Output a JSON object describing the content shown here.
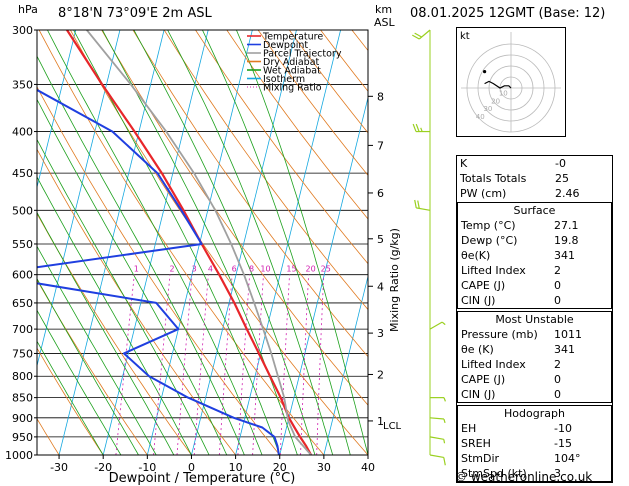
{
  "header": {
    "hpa_label": "hPa",
    "location": "8°18'N 73°09'E 2m ASL",
    "km_label": "km",
    "asl_label": "ASL",
    "datetime": "08.01.2025 12GMT (Base: 12)"
  },
  "legend": [
    {
      "label": "Temperature",
      "color": "#e8262a",
      "style": "solid"
    },
    {
      "label": "Dewpoint",
      "color": "#1f3fe0",
      "style": "solid"
    },
    {
      "label": "Parcel Trajectory",
      "color": "#a0a0a0",
      "style": "solid"
    },
    {
      "label": "Dry Adiabat",
      "color": "#e07a20",
      "style": "solid"
    },
    {
      "label": "Wet Adiabat",
      "color": "#1ca01c",
      "style": "solid"
    },
    {
      "label": "Isotherm",
      "color": "#16a8e0",
      "style": "solid"
    },
    {
      "label": "Mixing Ratio",
      "color": "#d020b0",
      "style": "dotted"
    }
  ],
  "chart_data": {
    "type": "line",
    "title": "8°18'N 73°09'E 2m ASL",
    "xlabel": "Dewpoint / Temperature (°C)",
    "ylabel": "hPa",
    "right_axis_label": "Mixing Ratio (g/kg)",
    "xlim": [
      -35,
      40
    ],
    "ylim": [
      1000,
      300
    ],
    "pressure_ticks": [
      300,
      350,
      400,
      450,
      500,
      550,
      600,
      650,
      700,
      750,
      800,
      850,
      900,
      950,
      1000
    ],
    "temp_ticks": [
      -30,
      -20,
      -10,
      0,
      10,
      20,
      30,
      40
    ],
    "km_ticks": [
      {
        "km": "1",
        "p": 908
      },
      {
        "km": "2",
        "p": 796
      },
      {
        "km": "3",
        "p": 708
      },
      {
        "km": "4",
        "p": 620
      },
      {
        "km": "5",
        "p": 542
      },
      {
        "km": "6",
        "p": 476
      },
      {
        "km": "7",
        "p": 416
      },
      {
        "km": "8",
        "p": 362
      }
    ],
    "lcl_label": "LCL",
    "lcl_pressure": 908,
    "mixing_ratio_labels": [
      "1",
      "2",
      "3",
      "4",
      "6",
      "8",
      "10",
      "15",
      "20",
      "25"
    ],
    "mixing_ratio_values": [
      1,
      2,
      3,
      4,
      6,
      8,
      10,
      15,
      20,
      25
    ],
    "series": [
      {
        "name": "Temperature",
        "pressure": [
          1000,
          975,
          950,
          925,
          900,
          850,
          800,
          750,
          700,
          650,
          600,
          550,
          500,
          450,
          400,
          350,
          300
        ],
        "values": [
          27.1,
          25.5,
          23.6,
          21.8,
          20.0,
          17.0,
          13.4,
          9.6,
          5.5,
          1.2,
          -3.8,
          -9.5,
          -15.5,
          -22.5,
          -31.0,
          -41.0,
          -52.0
        ]
      },
      {
        "name": "Dewpoint",
        "pressure": [
          1000,
          975,
          950,
          925,
          900,
          850,
          800,
          750,
          700,
          650,
          600,
          550,
          500,
          450,
          400,
          350,
          300
        ],
        "values": [
          19.8,
          19.0,
          17.8,
          14.5,
          7.5,
          -4.0,
          -14.0,
          -21.0,
          -10.0,
          -16.5,
          -57.0,
          -9.5,
          -16.0,
          -23.5,
          -36.0,
          -58.0,
          -62.0
        ]
      },
      {
        "name": "Parcel Trajectory",
        "pressure": [
          1000,
          950,
          908,
          850,
          800,
          750,
          700,
          650,
          600,
          550,
          500,
          450,
          400,
          350,
          300
        ],
        "values": [
          27.1,
          22.5,
          20.0,
          17.8,
          15.2,
          12.4,
          9.2,
          5.7,
          1.8,
          -2.8,
          -8.3,
          -15.2,
          -23.8,
          -34.5,
          -47.5
        ]
      }
    ]
  },
  "wind_barbs": [
    {
      "p": 1000,
      "dir": 100,
      "spd": 3
    },
    {
      "p": 950,
      "dir": 100,
      "spd": 5
    },
    {
      "p": 900,
      "dir": 95,
      "spd": 5
    },
    {
      "p": 850,
      "dir": 90,
      "spd": 5
    },
    {
      "p": 700,
      "dir": 60,
      "spd": 5
    },
    {
      "p": 500,
      "dir": 280,
      "spd": 10
    },
    {
      "p": 400,
      "dir": 270,
      "spd": 15
    },
    {
      "p": 300,
      "dir": 230,
      "spd": 10
    }
  ],
  "hodograph": {
    "unit_label": "kt",
    "ring_labels": [
      "10",
      "20",
      "30",
      "40"
    ],
    "trace": [
      [
        0,
        0
      ],
      [
        -1,
        1
      ],
      [
        -3,
        1
      ],
      [
        -5,
        0
      ],
      [
        -8,
        2
      ],
      [
        -10,
        3
      ],
      [
        -12,
        2
      ]
    ]
  },
  "indices": {
    "rows": [
      {
        "label": "K",
        "value": "-0"
      },
      {
        "label": "Totals Totals",
        "value": "25"
      },
      {
        "label": "PW (cm)",
        "value": "2.46"
      }
    ]
  },
  "surface": {
    "title": "Surface",
    "rows": [
      {
        "label": "Temp (°C)",
        "value": "27.1"
      },
      {
        "label": "Dewp (°C)",
        "value": "19.8"
      },
      {
        "label": "θe(K)",
        "value": "341"
      },
      {
        "label": "Lifted Index",
        "value": "2"
      },
      {
        "label": "CAPE (J)",
        "value": "0"
      },
      {
        "label": "CIN (J)",
        "value": "0"
      }
    ]
  },
  "most_unstable": {
    "title": "Most Unstable",
    "rows": [
      {
        "label": "Pressure (mb)",
        "value": "1011"
      },
      {
        "label": "θe (K)",
        "value": "341"
      },
      {
        "label": "Lifted Index",
        "value": "2"
      },
      {
        "label": "CAPE (J)",
        "value": "0"
      },
      {
        "label": "CIN (J)",
        "value": "0"
      }
    ]
  },
  "hodograph_table": {
    "title": "Hodograph",
    "rows": [
      {
        "label": "EH",
        "value": "-10"
      },
      {
        "label": "SREH",
        "value": "-15"
      },
      {
        "label": "StmDir",
        "value": "104°"
      },
      {
        "label": "StmSpd (kt)",
        "value": "3"
      }
    ]
  },
  "credit": "© weatheronline.co.uk",
  "colors": {
    "temperature": "#e8262a",
    "dewpoint": "#1f3fe0",
    "parcel": "#a0a0a0",
    "dry_adiabat": "#e07a20",
    "wet_adiabat": "#1ca01c",
    "isotherm": "#16a8e0",
    "mixing_ratio": "#d020b0",
    "wind": "#9ad020"
  }
}
